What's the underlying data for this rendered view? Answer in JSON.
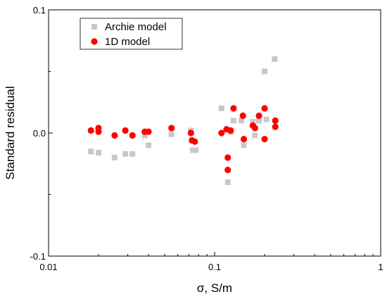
{
  "chart_data": {
    "type": "scatter",
    "title": "",
    "xlabel": "σ, S/m",
    "ylabel": "Standard residual",
    "x_scale": "log",
    "xlim": [
      0.01,
      1
    ],
    "ylim": [
      -0.1,
      0.1
    ],
    "x_ticks": [
      {
        "value": 0.01,
        "label": "0.01"
      },
      {
        "value": 0.1,
        "label": "0.1"
      },
      {
        "value": 1,
        "label": "1"
      }
    ],
    "y_ticks": [
      {
        "value": 0.1,
        "label": "0.1"
      },
      {
        "value": 0.0,
        "label": "0.0"
      },
      {
        "value": -0.1,
        "label": "-0.1"
      }
    ],
    "grid": false,
    "legend_position": "top-left",
    "series": [
      {
        "name": "Archie model",
        "marker": "square",
        "color": "#c8c8c8",
        "points": [
          {
            "x": 0.018,
            "y": -0.015
          },
          {
            "x": 0.02,
            "y": -0.016
          },
          {
            "x": 0.025,
            "y": -0.02
          },
          {
            "x": 0.029,
            "y": -0.017
          },
          {
            "x": 0.032,
            "y": -0.017
          },
          {
            "x": 0.038,
            "y": -0.002
          },
          {
            "x": 0.04,
            "y": -0.01
          },
          {
            "x": 0.055,
            "y": -0.001
          },
          {
            "x": 0.072,
            "y": 0.002
          },
          {
            "x": 0.074,
            "y": -0.014
          },
          {
            "x": 0.077,
            "y": -0.014
          },
          {
            "x": 0.11,
            "y": 0.02
          },
          {
            "x": 0.12,
            "y": -0.04
          },
          {
            "x": 0.125,
            "y": 0.001
          },
          {
            "x": 0.13,
            "y": 0.01
          },
          {
            "x": 0.145,
            "y": 0.01
          },
          {
            "x": 0.15,
            "y": -0.01
          },
          {
            "x": 0.17,
            "y": 0.009
          },
          {
            "x": 0.175,
            "y": -0.002
          },
          {
            "x": 0.185,
            "y": 0.01
          },
          {
            "x": 0.2,
            "y": 0.05
          },
          {
            "x": 0.205,
            "y": 0.011
          },
          {
            "x": 0.23,
            "y": 0.06
          }
        ]
      },
      {
        "name": "1D model",
        "marker": "circle",
        "color": "#ff0000",
        "points": [
          {
            "x": 0.018,
            "y": 0.002
          },
          {
            "x": 0.02,
            "y": 0.004
          },
          {
            "x": 0.02,
            "y": 0.001
          },
          {
            "x": 0.025,
            "y": -0.002
          },
          {
            "x": 0.029,
            "y": 0.002
          },
          {
            "x": 0.032,
            "y": -0.002
          },
          {
            "x": 0.038,
            "y": 0.001
          },
          {
            "x": 0.04,
            "y": 0.001
          },
          {
            "x": 0.055,
            "y": 0.004
          },
          {
            "x": 0.072,
            "y": 0.0
          },
          {
            "x": 0.073,
            "y": -0.006
          },
          {
            "x": 0.076,
            "y": -0.007
          },
          {
            "x": 0.11,
            "y": 0.0
          },
          {
            "x": 0.118,
            "y": 0.003
          },
          {
            "x": 0.12,
            "y": -0.02
          },
          {
            "x": 0.12,
            "y": -0.03
          },
          {
            "x": 0.125,
            "y": 0.002
          },
          {
            "x": 0.13,
            "y": 0.02
          },
          {
            "x": 0.148,
            "y": 0.014
          },
          {
            "x": 0.15,
            "y": -0.005
          },
          {
            "x": 0.17,
            "y": 0.006
          },
          {
            "x": 0.175,
            "y": 0.004
          },
          {
            "x": 0.185,
            "y": 0.014
          },
          {
            "x": 0.2,
            "y": 0.02
          },
          {
            "x": 0.2,
            "y": -0.005
          },
          {
            "x": 0.232,
            "y": 0.01
          },
          {
            "x": 0.232,
            "y": 0.005
          }
        ]
      }
    ]
  }
}
